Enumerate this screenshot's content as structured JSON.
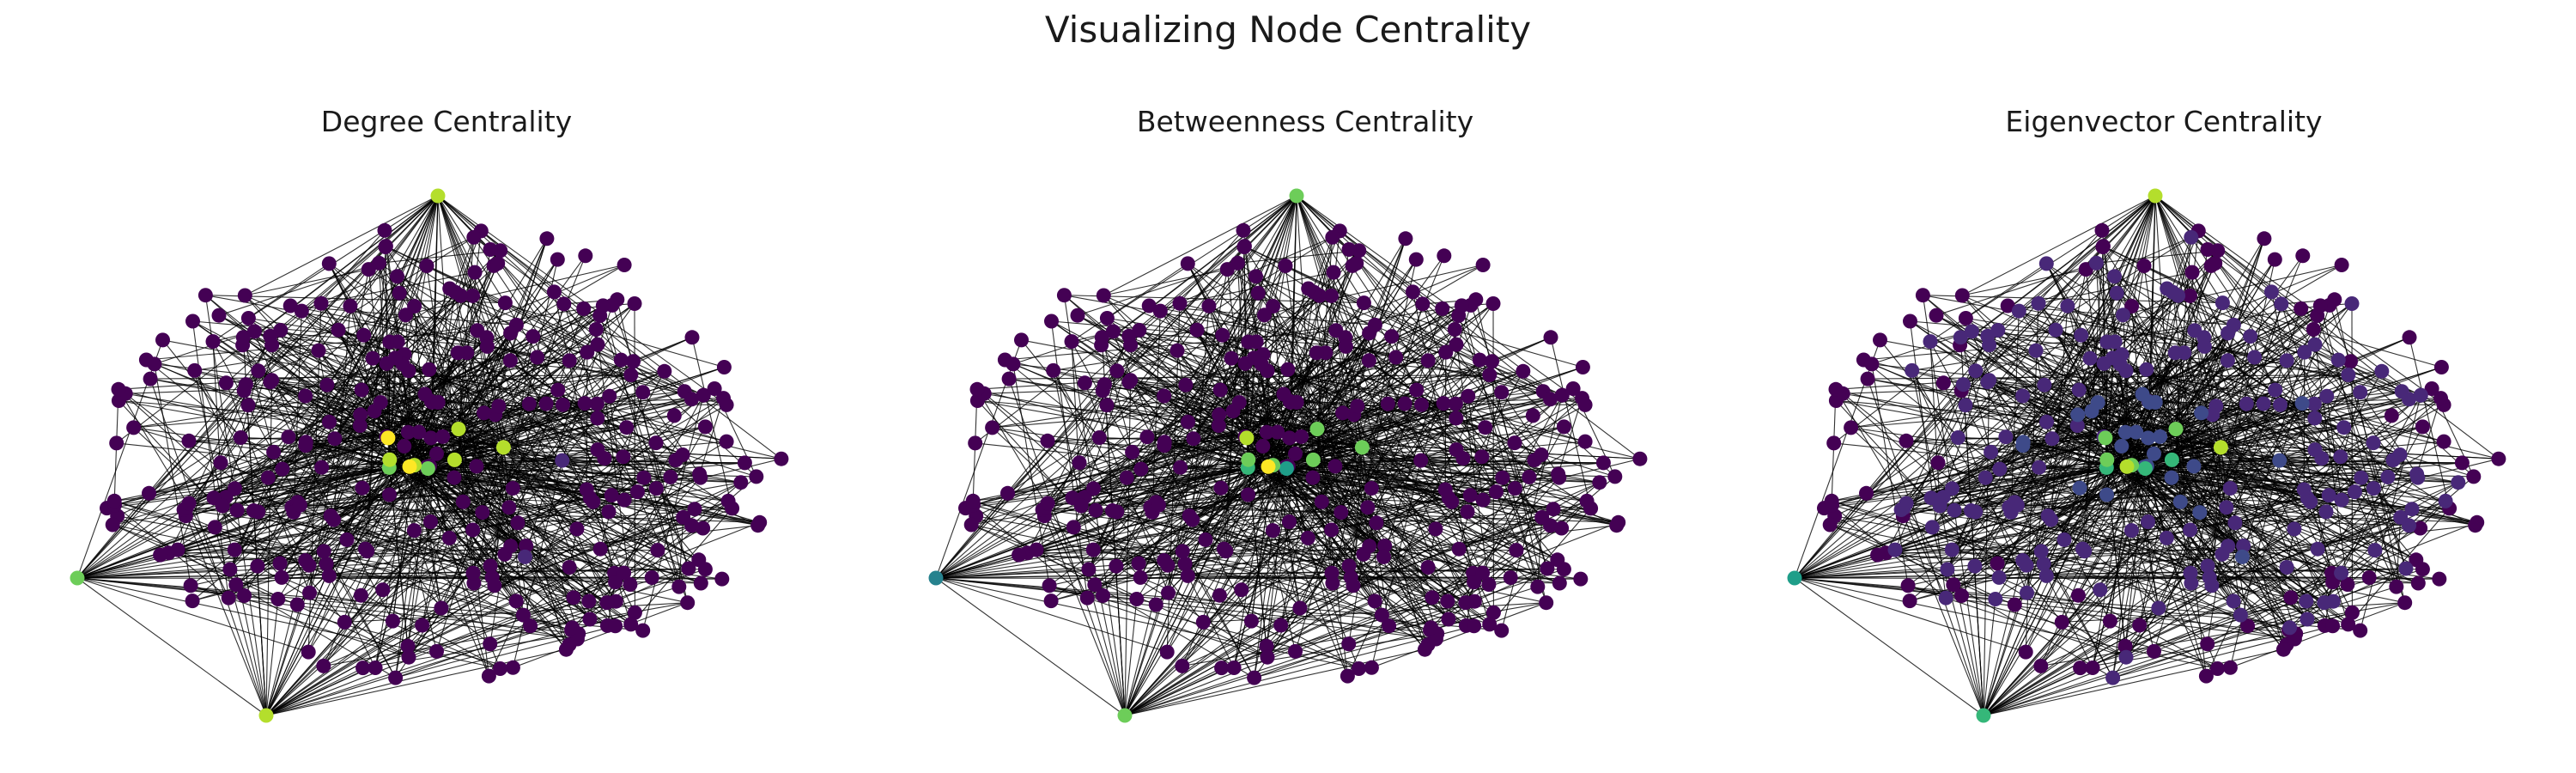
{
  "figure": {
    "title": "Visualizing Node Centrality"
  },
  "panels": [
    {
      "title": "Degree Centrality"
    },
    {
      "title": "Betweenness Centrality"
    },
    {
      "title": "Eigenvector Centrality"
    }
  ],
  "colors": {
    "edge": "#000000",
    "background": "#ffffff",
    "viridis_low": "#440154",
    "viridis_mid": "#21918c",
    "viridis_high": "#fde725"
  }
}
